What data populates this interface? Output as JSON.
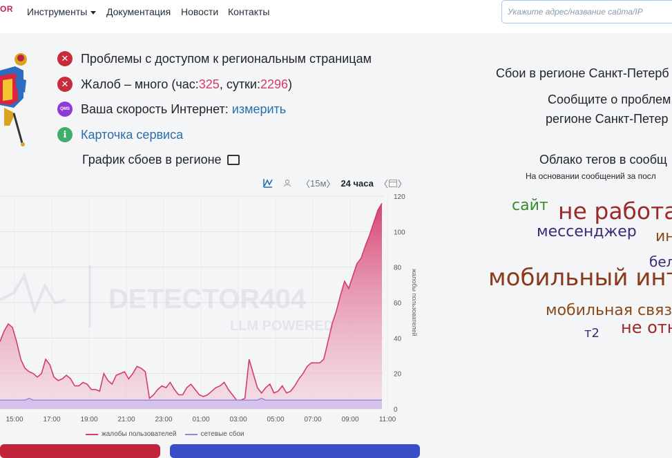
{
  "header": {
    "logo_fragment": "OR",
    "nav": [
      {
        "label": "Инструменты",
        "dropdown": true
      },
      {
        "label": "Документация"
      },
      {
        "label": "Новости"
      },
      {
        "label": "Контакты"
      }
    ],
    "search_placeholder": "Укажите адрес/название сайта/IP"
  },
  "status": {
    "access_problem": "Проблемы с доступом к региональным страницам",
    "complaints_prefix": "Жалоб – много (час: ",
    "complaints_hour": "325",
    "complaints_mid": ", сутки: ",
    "complaints_day": "2296",
    "complaints_suffix": ")",
    "speed_prefix": "Ваша скорость Интернет: ",
    "speed_link": "измерить",
    "qms_label": "QMS",
    "card_link": "Карточка сервиса"
  },
  "chart_section": {
    "title": "График сбоев в регионе",
    "controls": {
      "interval_15m": "15м",
      "interval_24h": "24 часа"
    }
  },
  "chart_data": {
    "type": "area",
    "x_ticks": [
      "15:00",
      "17:00",
      "19:00",
      "21:00",
      "23:00",
      "01:00",
      "03:00",
      "05:00",
      "07:00",
      "09:00",
      "11:00"
    ],
    "y_ticks": [
      "0",
      "20",
      "40",
      "60",
      "80",
      "100",
      "120"
    ],
    "ylim": [
      0,
      120
    ],
    "ylabel": "жалобы пользователей",
    "watermark": {
      "main": "DETECTOR404",
      "sub": "LLM POWERED"
    },
    "series": [
      {
        "name": "жалобы пользователей",
        "color": "#d43c6a",
        "values": [
          38,
          44,
          48,
          46,
          38,
          28,
          23,
          21,
          20,
          18,
          20,
          28,
          25,
          18,
          16,
          17,
          19,
          17,
          13,
          13,
          15,
          14,
          11,
          11,
          10,
          20,
          16,
          14,
          19,
          20,
          21,
          17,
          20,
          24,
          23,
          21,
          6,
          8,
          11,
          13,
          12,
          15,
          11,
          8,
          8,
          12,
          14,
          11,
          8,
          7,
          8,
          10,
          12,
          13,
          15,
          11,
          8,
          5,
          5,
          6,
          28,
          20,
          12,
          9,
          12,
          14,
          9,
          10,
          13,
          9,
          10,
          13,
          17,
          20,
          24,
          26,
          26,
          26,
          28,
          38,
          48,
          55,
          64,
          72,
          68,
          75,
          82,
          85,
          92,
          98,
          105,
          112,
          116
        ]
      },
      {
        "name": "сетевые сбои",
        "color": "#9b7fe0",
        "values": [
          5,
          5,
          5,
          5,
          5,
          5,
          5,
          6,
          5,
          5,
          5,
          5,
          5,
          5,
          5,
          5,
          5,
          5,
          5,
          5,
          5,
          5,
          5,
          5,
          5,
          5,
          5,
          5,
          5,
          5,
          5,
          5,
          5,
          5,
          5,
          5,
          5,
          5,
          5,
          5,
          5,
          5,
          5,
          5,
          5,
          5,
          5,
          5,
          5,
          5,
          5,
          5,
          5,
          5,
          5,
          5,
          5,
          5,
          5,
          5,
          5,
          5,
          5,
          6,
          5,
          5,
          5,
          5,
          5,
          5,
          5,
          5,
          5,
          5,
          5,
          5,
          5,
          5,
          5,
          5,
          5,
          5,
          5,
          5,
          5,
          5,
          5,
          5,
          5,
          5,
          5,
          5,
          5
        ]
      }
    ]
  },
  "right": {
    "region_outage": "Сбои в регионе Санкт-Петерб",
    "report_line1": "Сообщите о проблем",
    "report_line2": "регионе Санкт-Петер",
    "tags_title": "Облако тегов в сообщ",
    "tags_subtitle": "На основании сообщений за посл",
    "tags": [
      {
        "text": "сайт",
        "color": "#3a8a2a"
      },
      {
        "text": "не работа",
        "color": "#9b2a2a"
      },
      {
        "text": "мессенджер",
        "color": "#3a2a7a"
      },
      {
        "text": "ин",
        "color": "#8a4a1a"
      },
      {
        "text": "бел",
        "color": "#3a2a7a"
      },
      {
        "text": "мобильный инт",
        "color": "#8a3a1a"
      },
      {
        "text": "мобильная связ",
        "color": "#8a4a1a"
      },
      {
        "text": "не отн",
        "color": "#9b2a2a"
      },
      {
        "text": "т2",
        "color": "#3a2a7a"
      }
    ]
  }
}
